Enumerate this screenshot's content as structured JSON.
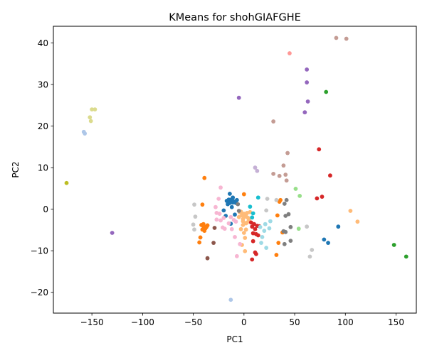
{
  "chart_data": {
    "type": "scatter",
    "title": "KMeans for shohGIAFGHE",
    "xlabel": "PC1",
    "ylabel": "PC2",
    "xlim": [
      -188,
      170
    ],
    "ylim": [
      -25,
      44
    ],
    "xticks": [
      -150,
      -100,
      -50,
      0,
      50,
      100,
      150
    ],
    "yticks": [
      -20,
      -10,
      0,
      10,
      20,
      30,
      40
    ],
    "grid": false,
    "legend": "none",
    "series": [
      {
        "cluster": 0,
        "color": "#1f77b4",
        "points": [
          [
            -17,
            2
          ],
          [
            -15,
            2.3
          ],
          [
            -13,
            1.8
          ],
          [
            -12,
            2.4
          ],
          [
            -11,
            1.6
          ],
          [
            -10,
            1.9
          ],
          [
            -8,
            1.5
          ],
          [
            -14,
            3.7
          ],
          [
            -16,
            1.2
          ],
          [
            -12,
            0.5
          ],
          [
            -20,
            -0.3
          ],
          [
            -18,
            -1.6
          ],
          [
            -9,
            -1.3
          ],
          [
            -13,
            -3.5
          ],
          [
            -7,
            2.2
          ],
          [
            93,
            -4.2
          ],
          [
            79,
            -7.3
          ],
          [
            83,
            -8.1
          ],
          [
            -14,
            1.5
          ],
          [
            -11,
            2.8
          ]
        ]
      },
      {
        "cluster": 1,
        "color": "#aec7e8",
        "points": [
          [
            -158,
            18.6
          ],
          [
            -157,
            18.2
          ],
          [
            -13,
            -21.8
          ]
        ]
      },
      {
        "cluster": 2,
        "color": "#ff7f0e",
        "points": [
          [
            -39,
            7.5
          ],
          [
            -41,
            1.1
          ],
          [
            -42,
            -3.8
          ],
          [
            -40,
            -4.1
          ],
          [
            -38,
            -4.6
          ],
          [
            -39,
            -5.2
          ],
          [
            -37,
            -4.3
          ],
          [
            -36,
            -3.9
          ],
          [
            -41,
            -4.9
          ],
          [
            -43,
            -6.8
          ],
          [
            -44,
            -8
          ],
          [
            0,
            3.6
          ],
          [
            33,
            -1.5
          ],
          [
            35,
            1.8
          ],
          [
            36,
            2.2
          ],
          [
            38,
            -5.6
          ],
          [
            34,
            -8.1
          ],
          [
            32,
            -11
          ],
          [
            -38,
            -4.3
          ],
          [
            -40,
            -3.6
          ]
        ]
      },
      {
        "cluster": 3,
        "color": "#ffbb78",
        "points": [
          [
            -3,
            -0.6
          ],
          [
            -2,
            -1.5
          ],
          [
            -1,
            -2.4
          ],
          [
            0,
            -1.1
          ],
          [
            1,
            -1.8
          ],
          [
            2,
            -3.4
          ],
          [
            3,
            -0.9
          ],
          [
            4,
            -2.1
          ],
          [
            5,
            -2.6
          ],
          [
            -1,
            -3.8
          ],
          [
            -3,
            -4.8
          ],
          [
            0,
            -5.7
          ],
          [
            1,
            -6.9
          ],
          [
            -2,
            -8.6
          ],
          [
            1,
            -10.1
          ],
          [
            2,
            -4.9
          ],
          [
            3,
            -3.2
          ],
          [
            -5,
            -1.9
          ],
          [
            -4,
            -0.8
          ],
          [
            6,
            -0.7
          ],
          [
            105,
            -0.4
          ],
          [
            112,
            -3
          ],
          [
            -1,
            -2.9
          ],
          [
            2,
            -1.4
          ]
        ]
      },
      {
        "cluster": 4,
        "color": "#2ca02c",
        "points": [
          [
            81,
            28.2
          ],
          [
            148,
            -8.6
          ],
          [
            160,
            -11.4
          ]
        ]
      },
      {
        "cluster": 5,
        "color": "#98df8a",
        "points": [
          [
            51,
            4.9
          ],
          [
            55,
            3.2
          ],
          [
            54,
            -4.7
          ]
        ]
      },
      {
        "cluster": 6,
        "color": "#d62728",
        "points": [
          [
            74,
            14.4
          ],
          [
            85,
            8.1
          ],
          [
            72,
            2.6
          ],
          [
            77,
            3
          ],
          [
            7,
            -3.2
          ],
          [
            8,
            -4.2
          ],
          [
            9,
            -5.8
          ],
          [
            10,
            -3.6
          ],
          [
            11,
            -4.8
          ],
          [
            12,
            -6
          ],
          [
            13,
            -4
          ],
          [
            9,
            -7.7
          ],
          [
            11,
            -10.4
          ],
          [
            12,
            -10.8
          ],
          [
            8,
            -12.1
          ],
          [
            14,
            -6.3
          ],
          [
            15,
            -4.1
          ]
        ]
      },
      {
        "cluster": 7,
        "color": "#ff9896",
        "points": [
          [
            45,
            37.5
          ]
        ]
      },
      {
        "cluster": 8,
        "color": "#9467bd",
        "points": [
          [
            62,
            33.6
          ],
          [
            62,
            30.5
          ],
          [
            63,
            25.9
          ],
          [
            60,
            23.3
          ],
          [
            -5,
            26.8
          ],
          [
            -130,
            -5.7
          ]
        ]
      },
      {
        "cluster": 9,
        "color": "#c5b0d5",
        "points": [
          [
            13,
            9.2
          ],
          [
            11,
            10
          ]
        ]
      },
      {
        "cluster": 10,
        "color": "#8c564b",
        "points": [
          [
            -36,
            -11.8
          ],
          [
            -30,
            -8.1
          ],
          [
            -29,
            -4.5
          ]
        ]
      },
      {
        "cluster": 11,
        "color": "#c49c94",
        "points": [
          [
            91,
            41.2
          ],
          [
            101,
            41
          ],
          [
            29,
            21.1
          ],
          [
            43,
            13.5
          ],
          [
            39,
            10.5
          ],
          [
            29,
            8.5
          ],
          [
            35,
            8
          ],
          [
            41,
            8.3
          ],
          [
            42,
            6.9
          ]
        ]
      },
      {
        "cluster": 12,
        "color": "#e377c2",
        "points": []
      },
      {
        "cluster": 13,
        "color": "#f7b6d2",
        "points": [
          [
            -23,
            5.2
          ],
          [
            -25,
            2.5
          ],
          [
            -28,
            0.5
          ],
          [
            -27,
            -0.9
          ],
          [
            -24,
            -1.1
          ],
          [
            -27,
            -2.5
          ],
          [
            -23,
            -2.7
          ],
          [
            -21,
            -4.4
          ],
          [
            -19,
            -4.7
          ],
          [
            -15,
            -3.4
          ],
          [
            -12,
            -4.8
          ],
          [
            -10,
            -2.6
          ],
          [
            -8,
            -3
          ],
          [
            -9,
            -6.7
          ],
          [
            -4,
            -8.4
          ],
          [
            -7,
            -11.3
          ],
          [
            -20,
            -2.1
          ],
          [
            -13,
            -1.9
          ]
        ]
      },
      {
        "cluster": 14,
        "color": "#7f7f7f",
        "points": [
          [
            42,
            2.2
          ],
          [
            40,
            1.3
          ],
          [
            44,
            -1.2
          ],
          [
            41,
            -1.6
          ],
          [
            46,
            -4.3
          ],
          [
            39,
            -5.3
          ],
          [
            41,
            -5.5
          ],
          [
            40,
            -8.4
          ],
          [
            46,
            -7.6
          ],
          [
            -6,
            1.2
          ],
          [
            -5,
            -0.4
          ]
        ]
      },
      {
        "cluster": 15,
        "color": "#c7c7c7",
        "points": [
          [
            -49,
            1.1
          ],
          [
            -48,
            -1.8
          ],
          [
            -50,
            -3.7
          ],
          [
            -49,
            -4.9
          ],
          [
            62,
            -4.2
          ],
          [
            67,
            -9.8
          ],
          [
            65,
            -11.4
          ],
          [
            22,
            -0.3
          ],
          [
            23,
            2.5
          ],
          [
            32,
            2.2
          ]
        ]
      },
      {
        "cluster": 16,
        "color": "#bcbd22",
        "points": [
          [
            -175,
            6.3
          ]
        ]
      },
      {
        "cluster": 17,
        "color": "#dbdb8d",
        "points": [
          [
            -150,
            24
          ],
          [
            -147,
            24
          ],
          [
            -152,
            22.1
          ],
          [
            -151,
            21.2
          ]
        ]
      },
      {
        "cluster": 18,
        "color": "#17becf",
        "points": [
          [
            14,
            2.8
          ],
          [
            6,
            0.6
          ],
          [
            9,
            -1
          ],
          [
            8,
            -2
          ]
        ]
      },
      {
        "cluster": 19,
        "color": "#9edae5",
        "points": [
          [
            16,
            -4.3
          ],
          [
            18,
            -6.7
          ],
          [
            20,
            -5.2
          ],
          [
            26,
            -2.9
          ],
          [
            25,
            -4.6
          ],
          [
            22,
            -9.3
          ],
          [
            17,
            -8.1
          ],
          [
            21,
            -3.6
          ]
        ]
      }
    ]
  }
}
